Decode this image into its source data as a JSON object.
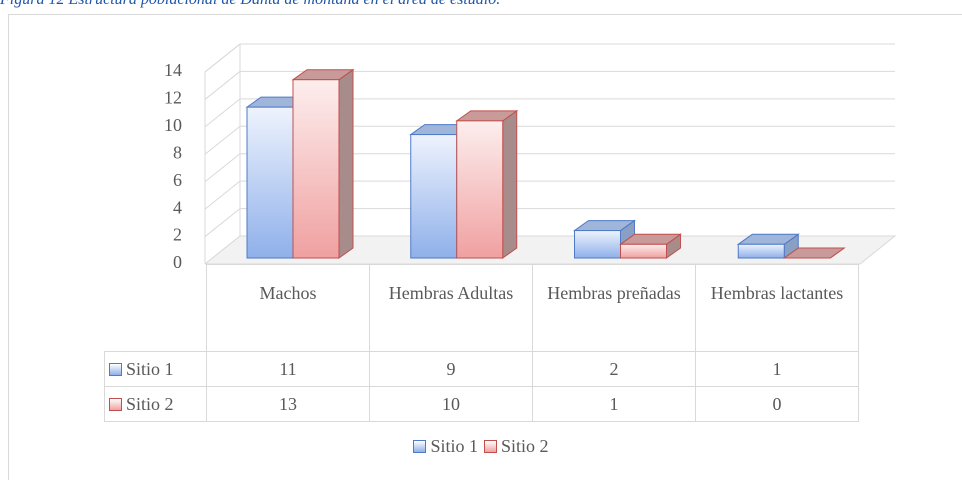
{
  "chart_data": {
    "type": "bar3d",
    "title": "Figura 12 Estructura poblacional de Danta de montaña en el área de estudio.",
    "categories": [
      "Machos",
      "Hembras Adultas",
      "Hembras preñadas",
      "Hembras lactantes"
    ],
    "series": [
      {
        "name": "Sitio 1",
        "color": "#4f7ac7",
        "values": [
          11,
          9,
          2,
          1
        ]
      },
      {
        "name": "Sitio 2",
        "color": "#c0504d",
        "values": [
          13,
          10,
          1,
          0
        ]
      }
    ],
    "ylim": [
      0,
      14
    ],
    "yticks": [
      0,
      2,
      4,
      6,
      8,
      10,
      12,
      14
    ],
    "grid": true,
    "legend": "bottom",
    "data_table": true
  }
}
